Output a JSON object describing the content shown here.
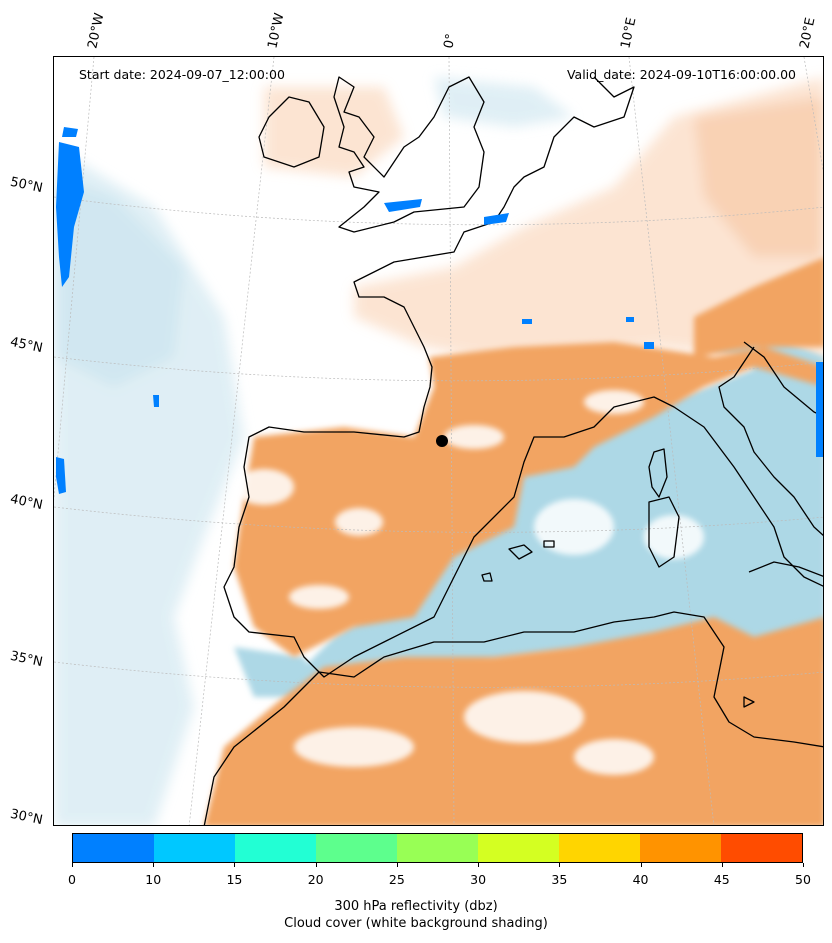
{
  "map": {
    "start_label": "Start date: 2024-09-07_12:00:00",
    "valid_label": "Valid_date: 2024-09-10T16:00:00.00",
    "lon_labels": [
      "20°W",
      "10°W",
      "0°",
      "10°E",
      "20°E"
    ],
    "lat_labels": [
      "50°N",
      "45°N",
      "40°N",
      "35°N",
      "30°N"
    ],
    "colors": {
      "land_fill": "#f2a462",
      "cloud_light": "#d8ebf3",
      "sea_cloud": "#add8e6",
      "coastline": "#000000",
      "reflectivity_blue": "#0080ff"
    }
  },
  "colorbar": {
    "ticks": [
      "0",
      "10",
      "15",
      "20",
      "25",
      "30",
      "35",
      "40",
      "45",
      "50"
    ],
    "colors": [
      "#0080ff",
      "#00c8ff",
      "#22ffd4",
      "#5dff8d",
      "#98ff55",
      "#d4ff22",
      "#ffd500",
      "#ff9300",
      "#ff4c00"
    ],
    "label": "300 hPa reflectivity (dbz)",
    "sublabel": "Cloud cover (white background shading)"
  }
}
